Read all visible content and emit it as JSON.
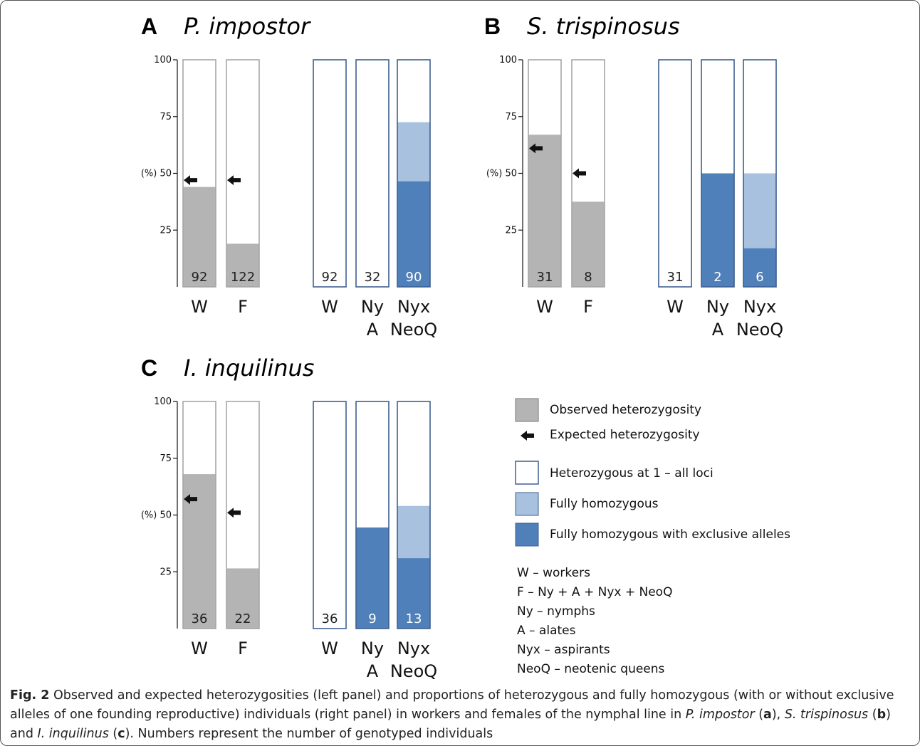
{
  "figure": {
    "y_axis_unit": "(%)",
    "y_ticks": [
      25,
      50,
      75,
      100
    ],
    "colors": {
      "observed_fill": "#b4b4b4",
      "observed_stroke": "#9a9a9a",
      "bar_outline_gray": "#a6a6a6",
      "bar_outline_blue": "#3e5f8f",
      "fully_homozygous": "#a7c1df",
      "exclusive_alleles": "#4f80ba",
      "arrow": "#111111"
    },
    "panels": [
      {
        "letter": "A",
        "species": "P. impostor"
      },
      {
        "letter": "B",
        "species": "S. trispinosus"
      },
      {
        "letter": "C",
        "species": "I. inquilinus"
      }
    ],
    "legend": {
      "items": [
        {
          "swatch": "observed",
          "label": "Observed heterozygosity"
        },
        {
          "swatch": "arrow",
          "label": "Expected heterozygosity"
        },
        {
          "swatch": "white",
          "label": "Heterozygous at 1 – all loci"
        },
        {
          "swatch": "light",
          "label": "Fully homozygous"
        },
        {
          "swatch": "dark",
          "label": "Fully homozygous with exclusive alleles"
        }
      ],
      "abbreviations": [
        "W – workers",
        "F – Ny + A + Nyx + NeoQ",
        "Ny – nymphs",
        "A – alates",
        "Nyx – aspirants",
        "NeoQ – neotenic queens"
      ]
    },
    "caption": {
      "label": "Fig. 2",
      "text": " Observed and expected heterozygosities (left panel) and proportions of heterozygous and fully homozygous (with or without exclusive alleles of one founding reproductive) individuals (right panel) in workers and females of the nymphal line in P. impostor (a), S. trispinosus (b) and I. inquilinus (c). Numbers represent the number of genotyped individuals"
    }
  },
  "chart_data": [
    {
      "type": "bar",
      "panel": "A",
      "title": "P. impostor",
      "ylabel": "(%)",
      "ylim": [
        0,
        100
      ],
      "heterozygosity": {
        "categories": [
          "W",
          "F"
        ],
        "observed": [
          44,
          19
        ],
        "expected": [
          47,
          47
        ],
        "n": [
          "92",
          "122"
        ]
      },
      "homozygosity": {
        "categories": [
          [
            "W"
          ],
          [
            "Ny",
            "A"
          ],
          [
            "Nyx",
            "NeoQ"
          ]
        ],
        "fully_homozygous_with_exclusive_alleles": [
          0,
          0,
          46.5
        ],
        "fully_homozygous": [
          0,
          0,
          26
        ],
        "n": [
          "92",
          "32",
          "90"
        ]
      }
    },
    {
      "type": "bar",
      "panel": "B",
      "title": "S. trispinosus",
      "ylabel": "(%)",
      "ylim": [
        0,
        100
      ],
      "heterozygosity": {
        "categories": [
          "W",
          "F"
        ],
        "observed": [
          67,
          37.5
        ],
        "expected": [
          61,
          50
        ],
        "n": [
          "31",
          "8"
        ]
      },
      "homozygosity": {
        "categories": [
          [
            "W"
          ],
          [
            "Ny",
            "A"
          ],
          [
            "Nyx",
            "NeoQ"
          ]
        ],
        "fully_homozygous_with_exclusive_alleles": [
          0,
          50,
          17
        ],
        "fully_homozygous": [
          0,
          0,
          33
        ],
        "n": [
          "31",
          "2",
          "6"
        ]
      }
    },
    {
      "type": "bar",
      "panel": "C",
      "title": "I. inquilinus",
      "ylabel": "(%)",
      "ylim": [
        0,
        100
      ],
      "heterozygosity": {
        "categories": [
          "W",
          "F"
        ],
        "observed": [
          68,
          26.5
        ],
        "expected": [
          57,
          51
        ],
        "n": [
          "36",
          "22"
        ]
      },
      "homozygosity": {
        "categories": [
          [
            "W"
          ],
          [
            "Ny",
            "A"
          ],
          [
            "Nyx",
            "NeoQ"
          ]
        ],
        "fully_homozygous_with_exclusive_alleles": [
          0,
          44.5,
          31
        ],
        "fully_homozygous": [
          0,
          0,
          23
        ],
        "n": [
          "36",
          "9",
          "13"
        ]
      }
    }
  ]
}
